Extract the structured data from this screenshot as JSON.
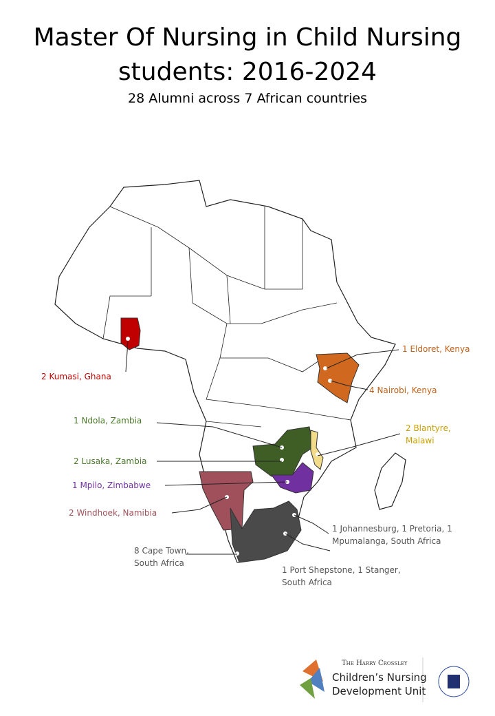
{
  "header": {
    "title": "Master Of Nursing in Child Nursing students: 2016-2024",
    "subtitle": "28 Alumni across 7 African countries"
  },
  "labels": [
    {
      "text": "1 Eldoret, Kenya",
      "color": "#c0601a"
    },
    {
      "text": "4 Nairobi, Kenya",
      "color": "#c0601a"
    },
    {
      "text": "2 Kumasi, Ghana",
      "color": "#c00000"
    },
    {
      "text": "1 Ndola, Zambia",
      "color": "#4a7a2a"
    },
    {
      "text": "2 Blantyre, Malawi",
      "color": "#c9a000"
    },
    {
      "text": "2 Lusaka, Zambia",
      "color": "#4a7a2a"
    },
    {
      "text": "1 Mpilo, Zimbabwe",
      "color": "#7030a0"
    },
    {
      "text": "2 Windhoek, Namibia",
      "color": "#a0505a"
    },
    {
      "text": "8 Cape Town, South Africa",
      "color": "#555555"
    },
    {
      "text": "1 Johannesburg, 1 Pretoria, 1 Mpumalanga, South Africa",
      "color": "#555555"
    },
    {
      "text": "1 Port Shepstone, 1 Stanger, South Africa",
      "color": "#555555"
    }
  ],
  "logo": {
    "line1": "The Harry Crossley",
    "line2": "Children’s Nursing",
    "line3": "Development Unit"
  }
}
